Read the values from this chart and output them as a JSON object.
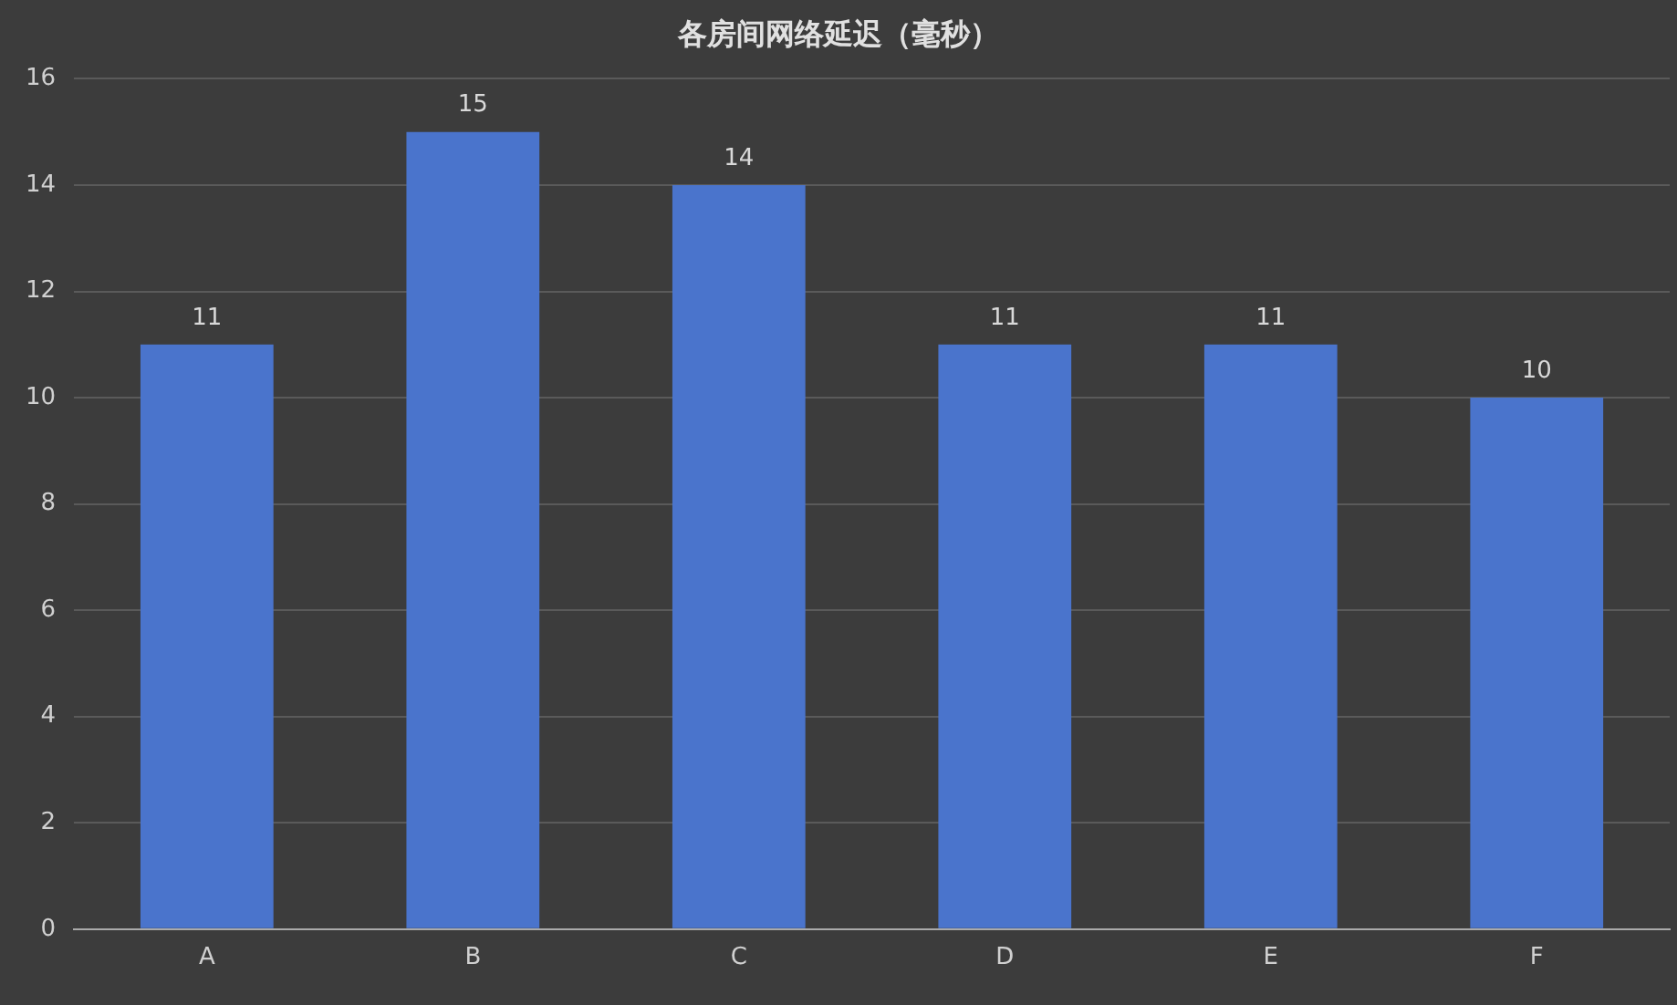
{
  "chart_data": {
    "type": "bar",
    "title": "各房间网络延迟（毫秒）",
    "categories": [
      "A",
      "B",
      "C",
      "D",
      "E",
      "F"
    ],
    "values": [
      11,
      15,
      14,
      11,
      11,
      10
    ],
    "color": "#4a74cc",
    "ylim": [
      0,
      16
    ],
    "yticks": [
      0,
      2,
      4,
      6,
      8,
      10,
      12,
      14,
      16
    ],
    "grid": "y",
    "data_labels": true
  }
}
